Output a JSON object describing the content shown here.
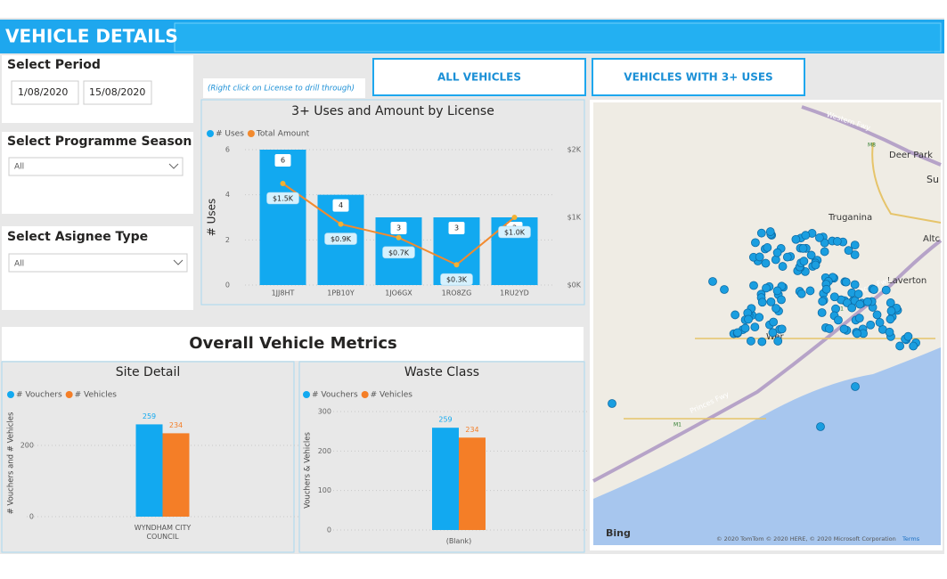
{
  "header": {
    "title": "VEHICLE DETAILS"
  },
  "filters": [
    {
      "label": "Select Period",
      "values": [
        "1/08/2020",
        "15/08/2020"
      ]
    },
    {
      "label": "Select Programme Season",
      "values": [
        "All"
      ]
    },
    {
      "label": "Select Asignee Type",
      "values": [
        "All"
      ]
    }
  ],
  "note": "(Right click on License to drill through)",
  "buttons": [
    "ALL VEHICLES",
    "VEHICLES WITH 3+ USES"
  ],
  "section_title": "Overall Vehicle Metrics",
  "map": {
    "labels": [
      "Deer Park",
      "Su",
      "Truganina",
      "Altc",
      "Laverton",
      "Wer",
      "Western Fwy",
      "Princes Fwy",
      "Princes Fwy",
      "M8",
      "M1",
      "M1"
    ],
    "logo": "Bing",
    "copyright": "© 2020 TomTom © 2020 HERE, © 2020 Microsoft Corporation",
    "terms": "Terms"
  },
  "chart_data": [
    {
      "type": "combo",
      "title": "3+ Uses and Amount by License",
      "y_label": "# Uses",
      "categories": [
        "1JJ8HT",
        "1PB10Y",
        "1JO6GX",
        "1RO8ZG",
        "1RU2YD"
      ],
      "series": [
        {
          "name": "# Uses",
          "color": "#12a9f0",
          "values": [
            6,
            4,
            3,
            3,
            3
          ]
        },
        {
          "name": "Total Amount",
          "color": "#f28a2e",
          "axis": "y2",
          "values": [
            1500,
            900,
            700,
            300,
            1000
          ],
          "value_labels": [
            "$1.5K",
            "$0.9K",
            "$0.7K",
            "$0.3K",
            "$1.0K"
          ]
        }
      ],
      "ylim": [
        0,
        6
      ],
      "yticks": [
        0,
        2,
        4,
        6
      ],
      "y2lim": [
        0,
        2000
      ],
      "y2ticks": [
        {
          "value": 0,
          "label": "$0K"
        },
        {
          "value": 1000,
          "label": "$1K"
        },
        {
          "value": 2000,
          "label": "$2K"
        }
      ],
      "grid": true
    },
    {
      "type": "bar",
      "title": "Site Detail",
      "y_label": "# Vouchers and # Vehicles",
      "categories": [
        "WYNDHAM CITY COUNCIL"
      ],
      "series": [
        {
          "name": "# Vouchers",
          "color": "#12a9f0",
          "values": [
            259
          ]
        },
        {
          "name": "# Vehicles",
          "color": "#f47e27",
          "values": [
            234
          ]
        }
      ],
      "ylim": [
        0,
        300
      ],
      "yticks": [
        0,
        200
      ],
      "grid": true
    },
    {
      "type": "bar",
      "title": "Waste Class",
      "y_label": "Vouchers & Vehicles",
      "categories": [
        "(Blank)"
      ],
      "series": [
        {
          "name": "# Vouchers",
          "color": "#12a9f0",
          "values": [
            259
          ]
        },
        {
          "name": "# Vehicles",
          "color": "#f47e27",
          "values": [
            234
          ]
        }
      ],
      "ylim": [
        0,
        300
      ],
      "yticks": [
        0,
        100,
        200,
        300
      ],
      "grid": true
    }
  ]
}
